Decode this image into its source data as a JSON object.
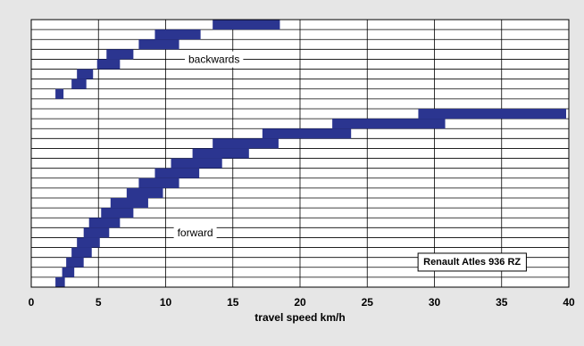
{
  "chart_data": {
    "type": "bar",
    "subtype": "gear-speed-ranges",
    "xlabel": "travel speed km/h",
    "xlim": [
      0,
      40
    ],
    "xticks": [
      0,
      5,
      10,
      15,
      20,
      25,
      30,
      35,
      40
    ],
    "grid": true,
    "bar_color": "#2b3590",
    "background_color": "#e6e6e6",
    "plot_color": "#ffffff",
    "annotations": [
      {
        "text": "backwards",
        "x": 13.6,
        "y": 23
      },
      {
        "text": "forward",
        "x": 12.2,
        "y": 5.5
      },
      {
        "text": "Renault Atles 936 RZ",
        "x": 32.8,
        "y": 2.6,
        "boxed": true
      }
    ],
    "series": [
      {
        "name": "forward",
        "ranges": [
          [
            1.8,
            2.5
          ],
          [
            2.3,
            3.2
          ],
          [
            2.6,
            3.9
          ],
          [
            3.0,
            4.5
          ],
          [
            3.4,
            5.1
          ],
          [
            3.9,
            5.8
          ],
          [
            4.3,
            6.6
          ],
          [
            5.2,
            7.6
          ],
          [
            5.9,
            8.7
          ],
          [
            7.1,
            9.8
          ],
          [
            8.0,
            11.0
          ],
          [
            9.2,
            12.5
          ],
          [
            10.4,
            14.2
          ],
          [
            12.0,
            16.2
          ],
          [
            13.5,
            18.4
          ],
          [
            17.2,
            23.8
          ],
          [
            22.4,
            30.8
          ],
          [
            28.8,
            39.8
          ]
        ]
      },
      {
        "name": "backwards",
        "ranges": [
          [
            1.8,
            2.4
          ],
          [
            3.0,
            4.1
          ],
          [
            3.4,
            4.6
          ],
          [
            4.9,
            6.6
          ],
          [
            5.6,
            7.6
          ],
          [
            8.0,
            11.0
          ],
          [
            9.2,
            12.6
          ],
          [
            13.5,
            18.5
          ]
        ]
      }
    ]
  }
}
